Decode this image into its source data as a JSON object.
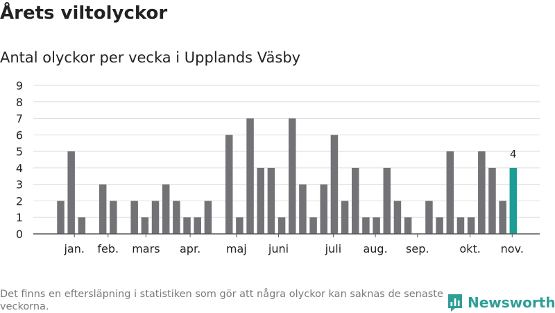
{
  "title": "Årets viltolyckor",
  "subtitle": "Antal olyckor per vecka i Upplands Väsby",
  "footnote": "Det finns en eftersläpning i statistiken som gör att några olyckor kan saknas de senaste veckorna.",
  "brand": {
    "name": "Newsworthy",
    "icon": "newsworthy-logo-icon"
  },
  "colors": {
    "bar": "#737277",
    "highlight": "#1a9e96",
    "grid": "#dddddd",
    "axis": "#555555"
  },
  "chart_data": {
    "type": "bar",
    "x": [
      1,
      2,
      3,
      4,
      5,
      6,
      7,
      8,
      9,
      10,
      11,
      12,
      13,
      14,
      15,
      16,
      17,
      18,
      19,
      20,
      21,
      22,
      23,
      24,
      25,
      26,
      27,
      28,
      29,
      30,
      31,
      32,
      33,
      34,
      35,
      36,
      37,
      38,
      39,
      40,
      41,
      42,
      43,
      44
    ],
    "values": [
      2,
      5,
      1,
      0,
      3,
      2,
      0,
      2,
      1,
      2,
      3,
      2,
      1,
      1,
      2,
      0,
      6,
      1,
      7,
      4,
      4,
      1,
      7,
      3,
      1,
      3,
      6,
      2,
      4,
      1,
      1,
      4,
      2,
      1,
      0,
      2,
      1,
      5,
      1,
      1,
      5,
      4,
      2,
      4
    ],
    "highlight_index": 43,
    "data_labels": [
      {
        "index": 43,
        "text": "4"
      }
    ],
    "ylim": [
      0,
      9
    ],
    "yticks": [
      0,
      1,
      2,
      3,
      4,
      5,
      6,
      7,
      8,
      9
    ],
    "grid": true,
    "month_labels": [
      {
        "label": "jan.",
        "week": 2.3
      },
      {
        "label": "feb.",
        "week": 5.5
      },
      {
        "label": "mars",
        "week": 9.1
      },
      {
        "label": "apr.",
        "week": 13.3
      },
      {
        "label": "maj",
        "week": 17.7
      },
      {
        "label": "juni",
        "week": 21.7
      },
      {
        "label": "juli",
        "week": 26.9
      },
      {
        "label": "aug.",
        "week": 30.9
      },
      {
        "label": "sep.",
        "week": 34.9
      },
      {
        "label": "okt.",
        "week": 39.9
      },
      {
        "label": "nov.",
        "week": 43.9
      }
    ]
  }
}
